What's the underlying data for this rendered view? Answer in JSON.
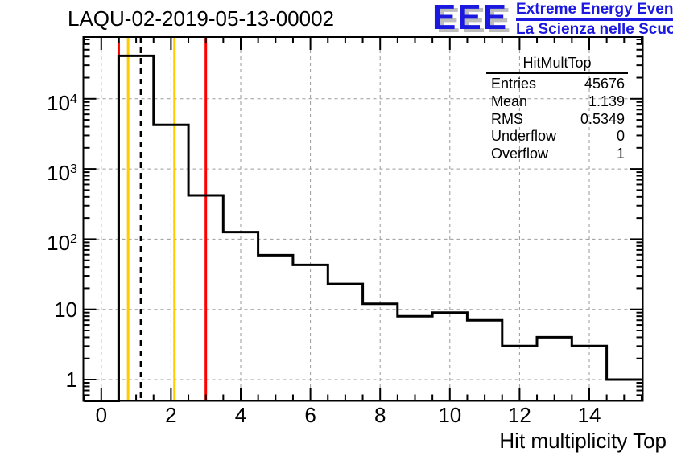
{
  "header": {
    "title": "LAQU-02-2019-05-13-00002",
    "logo": {
      "acronym": "EEE",
      "line1": "Extreme Energy Events",
      "line2": "La Scienza nelle Scuole",
      "color": "#1b18e0"
    }
  },
  "stats_box": {
    "title": "HitMultTop",
    "rows": [
      {
        "label": "Entries",
        "value": "45676"
      },
      {
        "label": "Mean",
        "value": "1.139"
      },
      {
        "label": "RMS",
        "value": "0.5349"
      },
      {
        "label": "Underflow",
        "value": "0"
      },
      {
        "label": "Overflow",
        "value": "1"
      }
    ]
  },
  "chart_data": {
    "type": "bar",
    "style": "step-histogram",
    "title": "LAQU-02-2019-05-13-00002",
    "xlabel": "Hit multiplicity Top",
    "ylabel": "",
    "y_scale": "log",
    "x_range": [
      -0.5,
      15.5
    ],
    "y_range": [
      0.5,
      76000
    ],
    "bin_width": 1,
    "bin_centers": [
      0,
      1,
      2,
      3,
      4,
      5,
      6,
      7,
      8,
      9,
      10,
      11,
      12,
      13,
      14,
      15
    ],
    "values": [
      0,
      40900,
      4250,
      420,
      126,
      59,
      43,
      23,
      12,
      8,
      9,
      7,
      3,
      4,
      3,
      1
    ],
    "x_major_ticks": [
      0,
      2,
      4,
      6,
      8,
      10,
      12,
      14
    ],
    "x_tick_labels": [
      "0",
      "2",
      "4",
      "6",
      "8",
      "10",
      "12",
      "14"
    ],
    "x_minor_tick_step": 0.5,
    "y_major_ticks": [
      1,
      10,
      100,
      1000,
      10000
    ],
    "y_tick_labels": [
      {
        "text": "1"
      },
      {
        "text": "10"
      },
      {
        "text": "10",
        "exp": "2"
      },
      {
        "text": "10",
        "exp": "3"
      },
      {
        "text": "10",
        "exp": "4"
      }
    ],
    "grid": true,
    "grid_color": "#9a9a9a",
    "line_color": "#000000",
    "marker_lines": [
      {
        "x": 0.5,
        "color": "#ff0000",
        "style": "solid",
        "name": "red-threshold-line-low"
      },
      {
        "x": 0.77,
        "color": "#ffcc00",
        "style": "solid",
        "name": "yellow-threshold-line-low"
      },
      {
        "x": 1.139,
        "color": "#000000",
        "style": "dashed",
        "name": "mean-dashed-line"
      },
      {
        "x": 2.1,
        "color": "#ffcc00",
        "style": "solid",
        "name": "yellow-threshold-line-high"
      },
      {
        "x": 3.0,
        "color": "#ff0000",
        "style": "solid",
        "name": "red-threshold-line-high"
      }
    ]
  }
}
